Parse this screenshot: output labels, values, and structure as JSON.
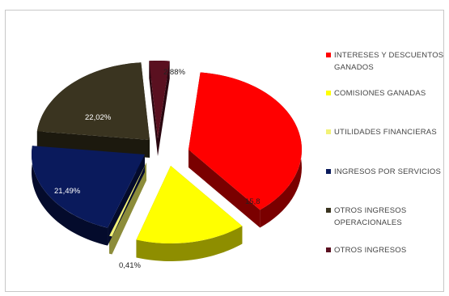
{
  "chart_data": {
    "type": "pie",
    "title": "",
    "slices": [
      {
        "name": "INTERESES Y DESCUENTOS GANADOS",
        "value": 37.5,
        "label": "37,50%",
        "color": "#ff0000",
        "dark": "#7a0000"
      },
      {
        "name": "COMISIONES GANADAS",
        "value": 15.8,
        "label": "15,8",
        "color": "#ffff00",
        "dark": "#8e8e00"
      },
      {
        "name": "UTILIDADES FINANCIERAS",
        "value": 0.41,
        "label": "0,41%",
        "color": "#f2f277",
        "dark": "#8c8c3a"
      },
      {
        "name": "INGRESOS POR SERVICIOS",
        "value": 21.49,
        "label": "21,49%",
        "color": "#0a1a5c",
        "dark": "#040b2c"
      },
      {
        "name": "OTROS INGRESOS OPERACIONALES",
        "value": 22.02,
        "label": "22,02%",
        "color": "#3a3420",
        "dark": "#1c190e"
      },
      {
        "name": "OTROS INGRESOS",
        "value": 2.88,
        "label": "2,88%",
        "color": "#5a1020",
        "dark": "#2a0610"
      }
    ],
    "legend_position": "right"
  }
}
